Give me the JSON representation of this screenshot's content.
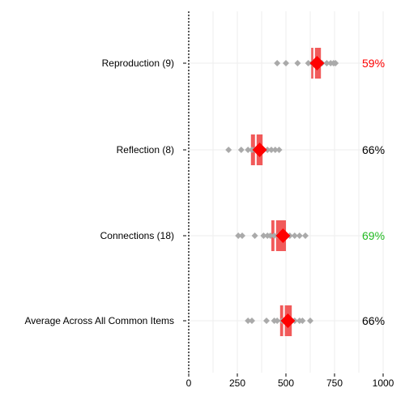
{
  "chart_data": {
    "type": "dot-range",
    "xlim": [
      0,
      1000
    ],
    "xticks": [
      0,
      250,
      500,
      750,
      1000
    ],
    "xtick_labels": [
      "0",
      "250",
      "500",
      "750",
      "1000"
    ],
    "grid": true,
    "dotted_reference_x": 0,
    "colors": {
      "points": "#aaaaaa",
      "range_box": "#f15a5a",
      "marker": "#ff0000",
      "pct_red": "#ff0000",
      "pct_green": "#22bb22",
      "pct_black": "#000000",
      "grid": "#eeeeee"
    },
    "rows": [
      {
        "label": "Reproduction (9)",
        "mean": 660,
        "box": [
          630,
          680
        ],
        "split": 645,
        "points": [
          455,
          500,
          560,
          615,
          635,
          650,
          685,
          710,
          730,
          745,
          755
        ],
        "percent": "59%",
        "percent_color": "red"
      },
      {
        "label": "Reflection (8)",
        "mean": 365,
        "box": [
          320,
          380
        ],
        "split": 345,
        "points": [
          205,
          270,
          305,
          325,
          340,
          385,
          405,
          425,
          445,
          465
        ],
        "percent": "66%",
        "percent_color": "black"
      },
      {
        "label": "Connections (18)",
        "mean": 485,
        "box": [
          425,
          500
        ],
        "split": 445,
        "points": [
          255,
          275,
          340,
          385,
          405,
          420,
          440,
          460,
          475,
          505,
          520,
          545,
          570,
          600
        ],
        "percent": "69%",
        "percent_color": "green"
      },
      {
        "label": "Average Across All Common Items",
        "mean": 510,
        "box": [
          470,
          530
        ],
        "split": 490,
        "points": [
          305,
          325,
          400,
          440,
          455,
          480,
          500,
          520,
          545,
          570,
          585,
          625
        ],
        "percent": "66%",
        "percent_color": "black"
      }
    ]
  }
}
